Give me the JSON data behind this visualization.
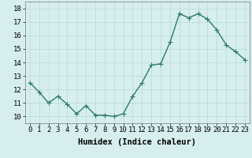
{
  "x": [
    0,
    1,
    2,
    3,
    4,
    5,
    6,
    7,
    8,
    9,
    10,
    11,
    12,
    13,
    14,
    15,
    16,
    17,
    18,
    19,
    20,
    21,
    22,
    23
  ],
  "y": [
    12.5,
    11.8,
    11.0,
    11.5,
    10.9,
    10.2,
    10.8,
    10.1,
    10.1,
    10.0,
    10.2,
    11.5,
    12.5,
    13.8,
    13.9,
    15.5,
    17.6,
    17.3,
    17.6,
    17.2,
    16.4,
    15.3,
    14.8,
    14.2
  ],
  "xlabel": "Humidex (Indice chaleur)",
  "xlim": [
    -0.5,
    23.5
  ],
  "ylim": [
    9.5,
    18.5
  ],
  "yticks": [
    10,
    11,
    12,
    13,
    14,
    15,
    16,
    17,
    18
  ],
  "xticks": [
    0,
    1,
    2,
    3,
    4,
    5,
    6,
    7,
    8,
    9,
    10,
    11,
    12,
    13,
    14,
    15,
    16,
    17,
    18,
    19,
    20,
    21,
    22,
    23
  ],
  "line_color": "#2d7a6a",
  "marker_color": "#2d7a6a",
  "bg_color": "#d6eeee",
  "grid_color": "#b8d8d8",
  "tick_fontsize": 6.5,
  "xlabel_fontsize": 7.5,
  "marker_size": 2.0,
  "line_width": 1.0
}
